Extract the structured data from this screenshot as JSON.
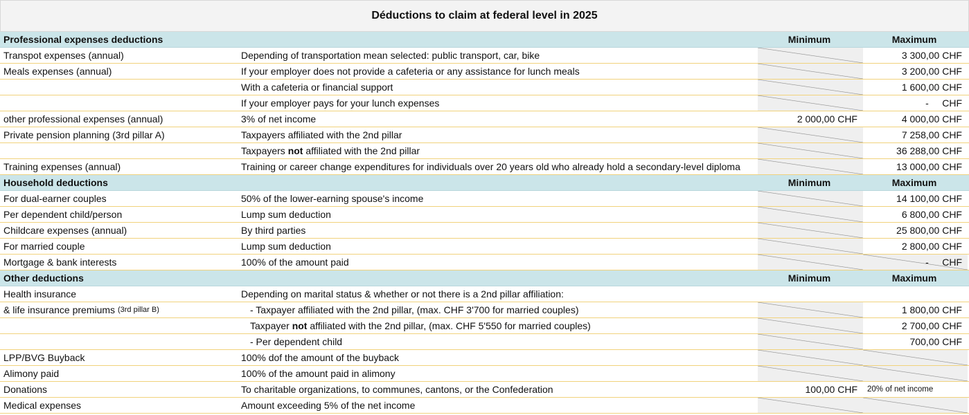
{
  "title": "Déductions to claim at federal level in 2025",
  "sections": [
    {
      "title": "Professional expenses deductions",
      "min_header": "Minimum",
      "max_header": "Maximum",
      "rows": [
        {
          "label": "Transpot expenses (annual)",
          "description": [
            "Depending of transportation mean selected: public transport, car, bike"
          ],
          "hatched": [
            "min"
          ],
          "max": "3 300,00 CHF"
        },
        {
          "label": "Meals expenses (annual)",
          "description": [
            "If your employer does not provide a cafeteria or any assistance for lunch meals"
          ],
          "hatched": [
            "min"
          ],
          "max": "3 200,00 CHF"
        },
        {
          "description": [
            "With a cafeteria or financial support"
          ],
          "hatched": [
            "min"
          ],
          "max": "1 600,00 CHF"
        },
        {
          "description": [
            "If your employer pays for your lunch expenses"
          ],
          "hatched": [
            "min"
          ],
          "max": "-     CHF"
        },
        {
          "label": "other professional expenses (annual)",
          "description": [
            "3% of net income"
          ],
          "min": "2 000,00 CHF",
          "max": "4 000,00 CHF"
        },
        {
          "label": "Private pension planning (3rd pillar A)",
          "description": [
            "Taxpayers affiliated with the 2nd pillar"
          ],
          "hatched": [
            "min"
          ],
          "max": "7 258,00 CHF"
        },
        {
          "description": [
            "Taxpayers ",
            "not",
            " affiliated with the 2nd pillar"
          ],
          "hatched": [
            "min"
          ],
          "max": "36 288,00 CHF"
        },
        {
          "label": "Training expenses (annual)",
          "description": [
            "Training or career change expenditures for individuals over 20 years old who already hold a secondary-level diploma"
          ],
          "overflow": true,
          "hatched": [
            "min"
          ],
          "max": "13 000,00 CHF"
        }
      ]
    },
    {
      "title": "Household deductions",
      "min_header": "Minimum",
      "max_header": "Maximum",
      "rows": [
        {
          "label": "For dual-earner couples",
          "description": [
            "50% of the lower-earning spouse's income"
          ],
          "hatched": [
            "min"
          ],
          "max": "14 100,00 CHF"
        },
        {
          "label": "Per dependent child/person",
          "description": [
            "Lump sum deduction"
          ],
          "hatched": [
            "min"
          ],
          "max": "6 800,00 CHF"
        },
        {
          "label": "Childcare expenses (annual)",
          "description": [
            "By third parties"
          ],
          "hatched": [
            "min"
          ],
          "max": "25 800,00 CHF"
        },
        {
          "label": "For married couple",
          "description": [
            "Lump sum deduction"
          ],
          "hatched": [
            "min"
          ],
          "max": "2 800,00 CHF"
        },
        {
          "label": "Mortgage & bank interests",
          "description": [
            "100% of the amount paid"
          ],
          "hatched": [
            "min",
            "max"
          ],
          "max": "-     CHF"
        }
      ]
    },
    {
      "title": "Other deductions",
      "min_header": "Minimum",
      "max_header": "Maximum",
      "rows": [
        {
          "label": "Health insurance",
          "description": [
            "Depending on marital status & whether or not there is a 2nd pillar affiliation:"
          ]
        },
        {
          "label": "& life insurance premiums ",
          "label_note": "(3rd pillar B)",
          "description": [
            "- Taxpayer affiliated with the 2nd pillar, (max. CHF 3'700 for married couples)"
          ],
          "indent": true,
          "hatched": [
            "min"
          ],
          "max": "1 800,00 CHF"
        },
        {
          "description": [
            "Taxpayer ",
            "not",
            " affiliated with the 2nd pillar, (max. CHF 5'550 for married couples)"
          ],
          "indent": true,
          "hatched": [
            "min"
          ],
          "max": "2 700,00 CHF"
        },
        {
          "description": [
            "- Per dependent child"
          ],
          "indent": true,
          "hatched": [
            "min"
          ],
          "max": "700,00 CHF"
        },
        {
          "label": "LPP/BVG Buyback",
          "description": [
            "100% dof the amount of the buyback"
          ],
          "hatched": [
            "min",
            "max"
          ]
        },
        {
          "label": "Alimony paid",
          "description": [
            "100% of the amount paid in alimony"
          ],
          "hatched": [
            "min",
            "max"
          ]
        },
        {
          "label": "Donations",
          "description": [
            "To charitable organizations, to communes, cantons, or the Confederation"
          ],
          "min": "100,00 CHF",
          "max": "20% of net income",
          "max_small": true
        },
        {
          "label": "Medical expenses",
          "description": [
            "Amount exceeding 5% of the net income"
          ],
          "hatched": [
            "min",
            "max"
          ]
        }
      ]
    }
  ]
}
